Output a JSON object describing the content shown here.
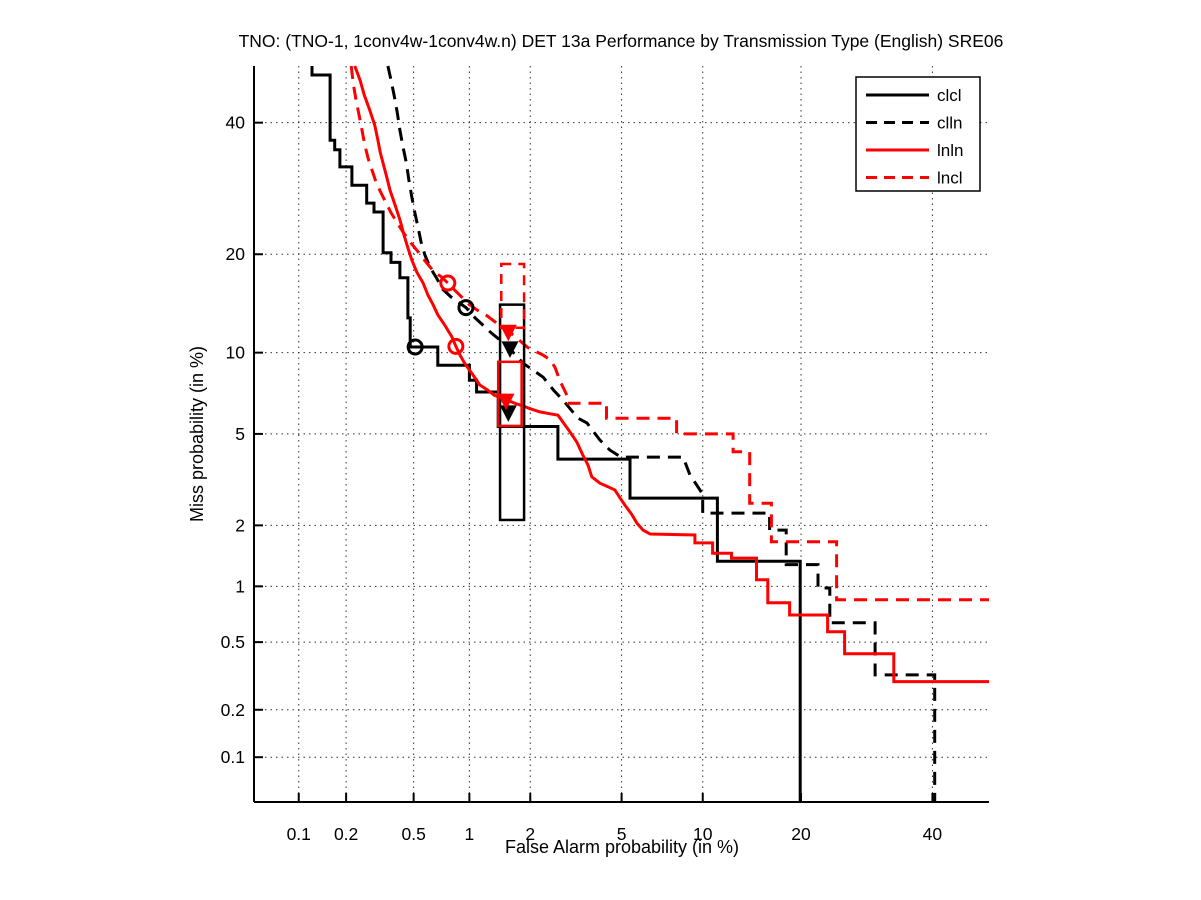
{
  "chart_data": {
    "type": "line",
    "subtype": "DET-curve (detection error tradeoff, stepped)",
    "title": "TNO: (TNO-1, 1conv4w-1conv4w.n) DET 13a Performance by Transmission Type (English) SRE06",
    "xlabel": "False Alarm probability (in %)",
    "ylabel": "Miss probability (in %)",
    "axis_scale": "probit (normal deviate) on both axes",
    "xlim": [
      0.05,
      50
    ],
    "ylim": [
      0.05,
      50
    ],
    "x_ticks": [
      0.1,
      0.2,
      0.5,
      1,
      2,
      5,
      10,
      20,
      40
    ],
    "y_ticks": [
      0.1,
      0.2,
      0.5,
      1,
      2,
      5,
      10,
      20,
      40
    ],
    "grid": "dotted",
    "colors": {
      "black": "#000000",
      "red": "#ff0000"
    },
    "legend": {
      "position": "top-right",
      "entries": [
        {
          "label": "clcl",
          "color": "#000000",
          "style": "solid"
        },
        {
          "label": "clln",
          "color": "#000000",
          "style": "dashed"
        },
        {
          "label": "lnln",
          "color": "#ff0000",
          "style": "solid"
        },
        {
          "label": "lncl",
          "color": "#ff0000",
          "style": "dashed"
        }
      ]
    },
    "series": [
      {
        "name": "clcl",
        "color": "#000000",
        "style": "solid",
        "points": [
          [
            0.122,
            50
          ],
          [
            0.122,
            48.4
          ],
          [
            0.159,
            48.4
          ],
          [
            0.159,
            37.0
          ],
          [
            0.17,
            37.0
          ],
          [
            0.17,
            35.4
          ],
          [
            0.183,
            35.4
          ],
          [
            0.183,
            32.6
          ],
          [
            0.217,
            32.6
          ],
          [
            0.217,
            29.7
          ],
          [
            0.267,
            29.7
          ],
          [
            0.267,
            27.0
          ],
          [
            0.295,
            27.0
          ],
          [
            0.295,
            25.7
          ],
          [
            0.334,
            25.7
          ],
          [
            0.334,
            20.2
          ],
          [
            0.371,
            20.2
          ],
          [
            0.371,
            19.0
          ],
          [
            0.418,
            19.0
          ],
          [
            0.418,
            17.2
          ],
          [
            0.464,
            17.2
          ],
          [
            0.464,
            13.0
          ],
          [
            0.478,
            13.0
          ],
          [
            0.478,
            10.45
          ],
          [
            0.68,
            10.45
          ],
          [
            0.68,
            9.05
          ],
          [
            1.0,
            9.05
          ],
          [
            1.0,
            8.0
          ],
          [
            1.09,
            8.0
          ],
          [
            1.09,
            7.25
          ],
          [
            1.4,
            7.25
          ],
          [
            1.4,
            5.35
          ],
          [
            2.68,
            5.35
          ],
          [
            2.68,
            3.94
          ],
          [
            5.4,
            3.94
          ],
          [
            5.4,
            2.67
          ],
          [
            11.2,
            2.67
          ],
          [
            11.2,
            1.34
          ],
          [
            19.9,
            1.34
          ],
          [
            19.9,
            0.05
          ]
        ]
      },
      {
        "name": "clln",
        "color": "#000000",
        "style": "dashed",
        "points": [
          [
            0.356,
            50
          ],
          [
            0.371,
            47.5
          ],
          [
            0.387,
            44.8
          ],
          [
            0.404,
            41.6
          ],
          [
            0.418,
            38.7
          ],
          [
            0.435,
            35.9
          ],
          [
            0.455,
            33.2
          ],
          [
            0.47,
            30.5
          ],
          [
            0.488,
            27.9
          ],
          [
            0.508,
            25.55
          ],
          [
            0.53,
            23.45
          ],
          [
            0.55,
            21.6
          ],
          [
            0.578,
            19.9
          ],
          [
            0.617,
            18.4
          ],
          [
            0.67,
            17.15
          ],
          [
            0.725,
            15.9
          ],
          [
            0.8,
            15.1
          ],
          [
            0.87,
            14.6
          ],
          [
            0.96,
            14.0
          ],
          [
            1.07,
            13.0
          ],
          [
            1.17,
            12.35
          ],
          [
            1.3,
            11.6
          ],
          [
            1.47,
            10.85
          ],
          [
            1.65,
            10.05
          ],
          [
            1.85,
            9.2
          ],
          [
            2.06,
            8.7
          ],
          [
            2.3,
            8.2
          ],
          [
            2.55,
            7.4
          ],
          [
            2.88,
            6.63
          ],
          [
            3.29,
            5.76
          ],
          [
            3.59,
            5.53
          ],
          [
            4.07,
            4.73
          ],
          [
            4.48,
            4.3
          ],
          [
            4.97,
            4.02
          ],
          [
            8.54,
            4.02
          ],
          [
            9.03,
            3.38
          ],
          [
            9.79,
            2.9
          ],
          [
            10.0,
            2.76
          ],
          [
            10.0,
            2.28
          ],
          [
            16.3,
            2.28
          ],
          [
            16.3,
            1.9
          ],
          [
            18.2,
            1.9
          ],
          [
            18.2,
            1.29
          ],
          [
            22.2,
            1.29
          ],
          [
            22.2,
            0.98
          ],
          [
            23.8,
            0.98
          ],
          [
            23.8,
            0.64
          ],
          [
            30.5,
            0.64
          ],
          [
            30.5,
            0.324
          ],
          [
            40.4,
            0.324
          ],
          [
            40.4,
            0.05
          ]
        ]
      },
      {
        "name": "lnln",
        "color": "#ff0000",
        "style": "solid",
        "points": [
          [
            0.226,
            50
          ],
          [
            0.243,
            47.5
          ],
          [
            0.258,
            44.8
          ],
          [
            0.278,
            42.2
          ],
          [
            0.298,
            39.6
          ],
          [
            0.311,
            37.0
          ],
          [
            0.321,
            35.0
          ],
          [
            0.334,
            33.2
          ],
          [
            0.348,
            31.3
          ],
          [
            0.366,
            29.0
          ],
          [
            0.392,
            26.7
          ],
          [
            0.418,
            24.6
          ],
          [
            0.441,
            22.5
          ],
          [
            0.464,
            20.8
          ],
          [
            0.488,
            19.3
          ],
          [
            0.52,
            17.85
          ],
          [
            0.565,
            16.6
          ],
          [
            0.6,
            15.3
          ],
          [
            0.64,
            14.3
          ],
          [
            0.68,
            13.3
          ],
          [
            0.74,
            12.35
          ],
          [
            0.81,
            11.3
          ],
          [
            0.85,
            10.5
          ],
          [
            0.895,
            9.8
          ],
          [
            0.945,
            9.2
          ],
          [
            1.045,
            8.35
          ],
          [
            1.13,
            7.7
          ],
          [
            1.23,
            7.4
          ],
          [
            1.34,
            7.05
          ],
          [
            1.51,
            6.83
          ],
          [
            1.69,
            6.58
          ],
          [
            1.85,
            6.43
          ],
          [
            2.0,
            6.27
          ],
          [
            2.22,
            6.1
          ],
          [
            2.47,
            6.0
          ],
          [
            2.68,
            5.93
          ],
          [
            2.88,
            5.43
          ],
          [
            3.03,
            5.1
          ],
          [
            3.25,
            4.64
          ],
          [
            3.45,
            4.1
          ],
          [
            3.63,
            3.72
          ],
          [
            3.77,
            3.31
          ],
          [
            4.07,
            3.11
          ],
          [
            4.4,
            3.0
          ],
          [
            4.7,
            2.9
          ],
          [
            4.93,
            2.67
          ],
          [
            5.16,
            2.48
          ],
          [
            5.5,
            2.24
          ],
          [
            5.75,
            2.05
          ],
          [
            6.07,
            1.9
          ],
          [
            6.46,
            1.82
          ],
          [
            9.4,
            1.8
          ],
          [
            9.4,
            1.65
          ],
          [
            10.8,
            1.65
          ],
          [
            10.8,
            1.47
          ],
          [
            12.45,
            1.47
          ],
          [
            12.45,
            1.39
          ],
          [
            14.9,
            1.39
          ],
          [
            14.9,
            1.08
          ],
          [
            16.1,
            1.08
          ],
          [
            16.1,
            0.82
          ],
          [
            18.6,
            0.82
          ],
          [
            18.6,
            0.705
          ],
          [
            23.5,
            0.705
          ],
          [
            23.5,
            0.572
          ],
          [
            25.9,
            0.572
          ],
          [
            25.9,
            0.43
          ],
          [
            33.5,
            0.43
          ],
          [
            33.5,
            0.296
          ],
          [
            50,
            0.296
          ]
        ]
      },
      {
        "name": "lncl",
        "color": "#ff0000",
        "style": "dashed",
        "points": [
          [
            0.215,
            50
          ],
          [
            0.222,
            46.6
          ],
          [
            0.23,
            44.0
          ],
          [
            0.24,
            41.3
          ],
          [
            0.25,
            38.7
          ],
          [
            0.26,
            36.2
          ],
          [
            0.272,
            34.0
          ],
          [
            0.287,
            32.1
          ],
          [
            0.303,
            30.2
          ],
          [
            0.325,
            28.5
          ],
          [
            0.348,
            27.0
          ],
          [
            0.371,
            25.6
          ],
          [
            0.4,
            24.3
          ],
          [
            0.435,
            22.9
          ],
          [
            0.477,
            21.6
          ],
          [
            0.53,
            20.3
          ],
          [
            0.585,
            19.05
          ],
          [
            0.65,
            17.85
          ],
          [
            0.71,
            17.3
          ],
          [
            0.77,
            16.6
          ],
          [
            0.84,
            15.8
          ],
          [
            0.915,
            15.05
          ],
          [
            1.0,
            14.3
          ],
          [
            1.11,
            13.7
          ],
          [
            1.23,
            13.2
          ],
          [
            1.38,
            12.5
          ],
          [
            1.57,
            11.8
          ],
          [
            1.75,
            11.1
          ],
          [
            1.95,
            10.4
          ],
          [
            2.06,
            10.2
          ],
          [
            2.3,
            9.8
          ],
          [
            2.47,
            9.45
          ],
          [
            2.6,
            8.9
          ],
          [
            2.73,
            8.0
          ],
          [
            2.86,
            7.4
          ],
          [
            2.97,
            6.92
          ],
          [
            2.97,
            6.58
          ],
          [
            4.34,
            6.58
          ],
          [
            4.34,
            5.76
          ],
          [
            8.1,
            5.76
          ],
          [
            8.1,
            5.0
          ],
          [
            12.6,
            5.0
          ],
          [
            12.6,
            4.23
          ],
          [
            14.2,
            4.23
          ],
          [
            14.2,
            2.53
          ],
          [
            15.9,
            2.53
          ],
          [
            16.5,
            2.53
          ],
          [
            16.5,
            1.67
          ],
          [
            24.75,
            1.67
          ],
          [
            24.75,
            0.85
          ],
          [
            50,
            0.85
          ]
        ]
      }
    ],
    "markers": {
      "min_cost_circles": [
        {
          "series": "clcl",
          "color": "#000000",
          "pfa": 0.51,
          "pmiss": 10.45
        },
        {
          "series": "clln",
          "color": "#000000",
          "pfa": 0.96,
          "pmiss": 14.0
        },
        {
          "series": "lnln",
          "color": "#ff0000",
          "pfa": 0.85,
          "pmiss": 10.5
        },
        {
          "series": "lncl",
          "color": "#ff0000",
          "pfa": 0.77,
          "pmiss": 16.6
        }
      ],
      "actual_cost_triangles": [
        {
          "series": "clcl",
          "color": "#000000",
          "pfa": 1.57,
          "pmiss": 6.05
        },
        {
          "series": "clln",
          "color": "#000000",
          "pfa": 1.6,
          "pmiss": 10.3
        },
        {
          "series": "lnln",
          "color": "#ff0000",
          "pfa": 1.53,
          "pmiss": 6.7
        },
        {
          "series": "lncl",
          "color": "#ff0000",
          "pfa": 1.57,
          "pmiss": 11.7
        }
      ],
      "confidence_boxes": [
        {
          "series": "clcl",
          "color": "#000000",
          "style": "solid",
          "pfa": [
            1.43,
            1.87
          ],
          "pmiss": [
            2.12,
            14.3
          ]
        },
        {
          "series": "lnln",
          "color": "#ff0000",
          "style": "solid",
          "pfa": [
            1.4,
            1.82
          ],
          "pmiss": [
            5.38,
            9.3
          ]
        },
        {
          "series": "lncl",
          "color": "#ff0000",
          "style": "dashed",
          "pfa": [
            1.45,
            1.87
          ],
          "pmiss": [
            12.1,
            18.8
          ]
        }
      ]
    }
  }
}
